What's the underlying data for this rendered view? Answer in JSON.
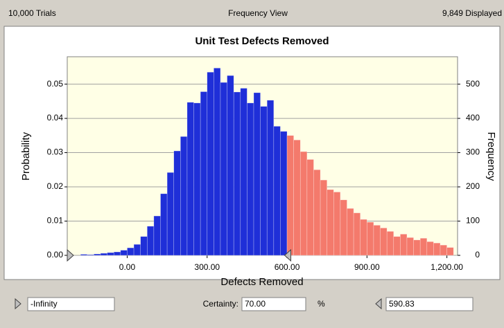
{
  "header": {
    "left": "10,000 Trials",
    "center": "Frequency View",
    "right": "9,849 Displayed"
  },
  "chart_data": {
    "type": "histogram",
    "title": "Unit Test Defects Removed",
    "x_label": "Defects Removed",
    "y_label": "Probability",
    "y2_label": "Frequency",
    "bins": [
      -175,
      -150,
      -125,
      -100,
      -75,
      -50,
      -25,
      0,
      25,
      50,
      75,
      100,
      125,
      150,
      175,
      200,
      225,
      250,
      275,
      300,
      325,
      350,
      375,
      400,
      425,
      450,
      475,
      500,
      525,
      550,
      575,
      600,
      625,
      650,
      675,
      700,
      725,
      750,
      775,
      800,
      825,
      850,
      875,
      900,
      925,
      950,
      975,
      1000,
      1025,
      1050,
      1075,
      1100,
      1125,
      1150,
      1175,
      1200,
      1225
    ],
    "values": [
      0.0003,
      0.0002,
      0.0004,
      0.0006,
      0.0008,
      0.001,
      0.0015,
      0.0022,
      0.0032,
      0.0055,
      0.0085,
      0.0115,
      0.018,
      0.0242,
      0.0305,
      0.0347,
      0.0447,
      0.0445,
      0.0478,
      0.0535,
      0.0547,
      0.0505,
      0.0525,
      0.0477,
      0.0488,
      0.0445,
      0.0475,
      0.0435,
      0.0453,
      0.0377,
      0.0362,
      0.035,
      0.0337,
      0.0303,
      0.028,
      0.025,
      0.022,
      0.0192,
      0.0185,
      0.0162,
      0.0137,
      0.0124,
      0.0105,
      0.0097,
      0.0088,
      0.008,
      0.007,
      0.0055,
      0.0062,
      0.0052,
      0.0045,
      0.005,
      0.004,
      0.0036,
      0.003,
      0.0023
    ],
    "colors": {
      "inside": "#1f2fd8",
      "outside": "#f47a6c"
    },
    "xlim": [
      -225,
      1240
    ],
    "xticks": [
      {
        "value": 0,
        "label": "0.00"
      },
      {
        "value": 300,
        "label": "300.00"
      },
      {
        "value": 600,
        "label": "600.00"
      },
      {
        "value": 900,
        "label": "900.00"
      },
      {
        "value": 1200,
        "label": "1,200.00"
      }
    ],
    "ylim": [
      0,
      0.058
    ],
    "yticks": [
      {
        "value": 0,
        "label": "0.00"
      },
      {
        "value": 0.01,
        "label": "0.01"
      },
      {
        "value": 0.02,
        "label": "0.02"
      },
      {
        "value": 0.03,
        "label": "0.03"
      },
      {
        "value": 0.04,
        "label": "0.04"
      },
      {
        "value": 0.05,
        "label": "0.05"
      }
    ],
    "y2lim": [
      0,
      580
    ],
    "y2ticks": [
      0,
      100,
      200,
      300,
      400,
      500
    ],
    "grid": true
  },
  "controls": {
    "lower": "-Infinity",
    "certainty_label": "Certainty:",
    "certainty": "70.00",
    "unit": "%",
    "upper": 590.83
  }
}
